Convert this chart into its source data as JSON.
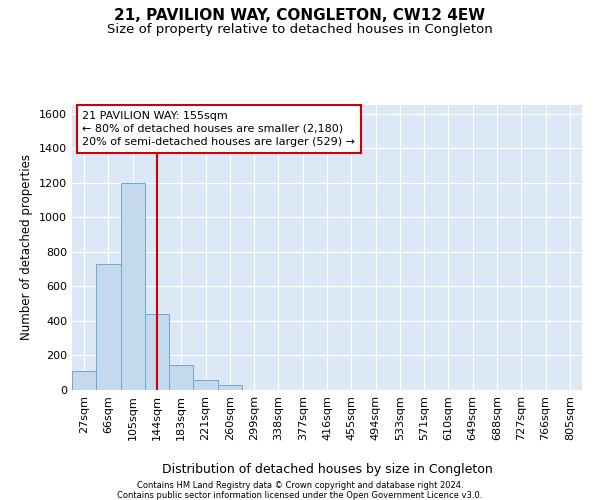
{
  "title": "21, PAVILION WAY, CONGLETON, CW12 4EW",
  "subtitle": "Size of property relative to detached houses in Congleton",
  "xlabel": "Distribution of detached houses by size in Congleton",
  "ylabel": "Number of detached properties",
  "footnote1": "Contains HM Land Registry data © Crown copyright and database right 2024.",
  "footnote2": "Contains public sector information licensed under the Open Government Licence v3.0.",
  "bin_labels": [
    "27sqm",
    "66sqm",
    "105sqm",
    "144sqm",
    "183sqm",
    "221sqm",
    "260sqm",
    "299sqm",
    "338sqm",
    "377sqm",
    "416sqm",
    "455sqm",
    "494sqm",
    "533sqm",
    "571sqm",
    "610sqm",
    "649sqm",
    "688sqm",
    "727sqm",
    "766sqm",
    "805sqm"
  ],
  "bar_values": [
    110,
    730,
    1200,
    440,
    145,
    60,
    30,
    0,
    0,
    0,
    0,
    0,
    0,
    0,
    0,
    0,
    0,
    0,
    0,
    0,
    0
  ],
  "bar_color": "#c5d9ee",
  "bar_edge_color": "#6aaad4",
  "property_line_color": "#cc0000",
  "property_line_x": 3.0,
  "annotation_line1": "21 PAVILION WAY: 155sqm",
  "annotation_line2": "← 80% of detached houses are smaller (2,180)",
  "annotation_line3": "20% of semi-detached houses are larger (529) →",
  "annotation_box_edgecolor": "#cc0000",
  "ylim": [
    0,
    1650
  ],
  "yticks": [
    0,
    200,
    400,
    600,
    800,
    1000,
    1200,
    1400,
    1600
  ],
  "background_color": "#dce8f5",
  "grid_color": "#ffffff",
  "title_fontsize": 11,
  "subtitle_fontsize": 9.5,
  "annotation_fontsize": 8,
  "tick_fontsize": 8,
  "ylabel_fontsize": 8.5,
  "xlabel_fontsize": 9
}
